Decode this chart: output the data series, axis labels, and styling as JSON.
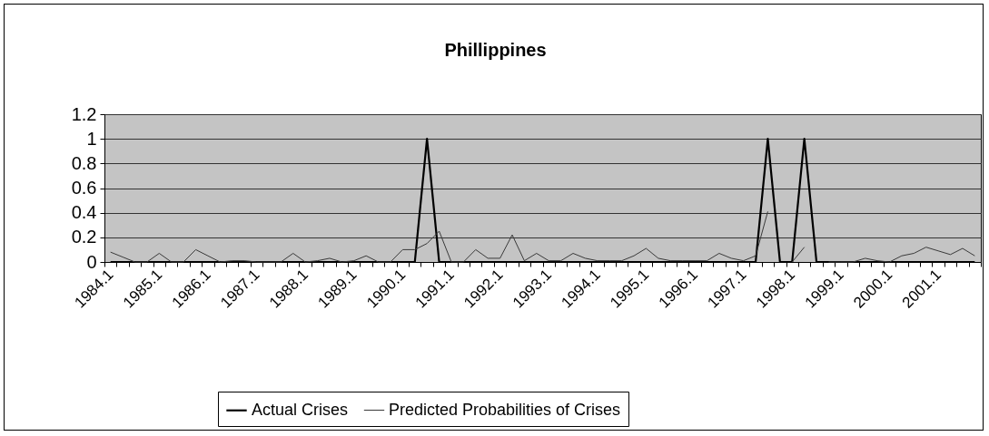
{
  "chart_data": {
    "type": "line",
    "title": "Phillippines",
    "categories": [
      "1984.1",
      null,
      null,
      null,
      "1985.1",
      null,
      null,
      null,
      "1986.1",
      null,
      null,
      null,
      "1987.1",
      null,
      null,
      null,
      "1988.1",
      null,
      null,
      null,
      "1989.1",
      null,
      null,
      null,
      "1990.1",
      null,
      null,
      null,
      "1991.1",
      null,
      null,
      null,
      "1992.1",
      null,
      null,
      null,
      "1993.1",
      null,
      null,
      null,
      "1994.1",
      null,
      null,
      null,
      "1995.1",
      null,
      null,
      null,
      "1996.1",
      null,
      null,
      null,
      "1997.1",
      null,
      null,
      null,
      "1998.1",
      null,
      null,
      null,
      "1999.1",
      null,
      null,
      null,
      "2000.1",
      null,
      null,
      null,
      "2001.1",
      null,
      null,
      null
    ],
    "series": [
      {
        "name": "Actual Crises",
        "color": "#000000",
        "values": [
          0,
          0,
          0,
          0,
          0,
          0,
          0,
          0,
          0,
          0,
          0,
          0,
          0,
          0,
          0,
          0,
          0,
          0,
          0,
          0,
          0,
          0,
          0,
          0,
          0,
          0,
          1,
          0,
          0,
          0,
          0,
          0,
          0,
          0,
          0,
          0,
          0,
          0,
          0,
          0,
          0,
          0,
          0,
          0,
          0,
          0,
          0,
          0,
          0,
          0,
          0,
          0,
          0,
          0,
          1,
          0,
          0,
          1,
          0,
          0,
          0,
          0,
          0,
          0,
          0,
          0,
          0,
          0,
          0,
          0,
          0,
          0
        ]
      },
      {
        "name": "Predicted Probabilities of Crises",
        "color": "#3a3a3a",
        "values": [
          0.08,
          0.04,
          0,
          0,
          0.07,
          0,
          0,
          0.1,
          0.05,
          0,
          0.01,
          0.01,
          0,
          0,
          0,
          0.07,
          0,
          0.01,
          0.03,
          0,
          0.01,
          0.05,
          0,
          0,
          0.1,
          0.1,
          0.15,
          0.25,
          0,
          0,
          0.1,
          0.03,
          0.03,
          0.22,
          0.01,
          0.07,
          0.01,
          0.01,
          0.07,
          0.03,
          0.01,
          0.01,
          0.01,
          0.05,
          0.11,
          0.03,
          0.01,
          0.01,
          0.01,
          0.01,
          0.07,
          0.03,
          0.01,
          0.05,
          0.41,
          null,
          0,
          0.12,
          null,
          0,
          0,
          0,
          0.03,
          0.01,
          0,
          0.05,
          0.07,
          0.12,
          0.09,
          0.06,
          0.11,
          0.05
        ]
      }
    ],
    "ylim": [
      0,
      1.2
    ],
    "yticks": [
      0,
      0.2,
      0.4,
      0.6,
      0.8,
      1,
      1.2
    ],
    "grid": "y",
    "legend": "bottom"
  }
}
